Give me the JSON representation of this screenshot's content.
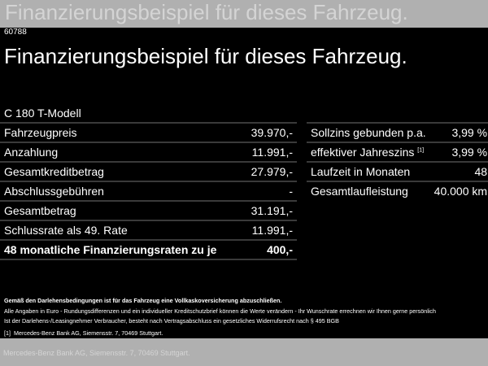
{
  "code": "60788",
  "title": "Finanzierungsbeispiel für dieses Fahrzeug.",
  "model": "C 180 T-Modell",
  "left_rows": [
    {
      "label": "Fahrzeugpreis",
      "value": "39.970,-"
    },
    {
      "label": "Anzahlung",
      "value": "11.991,-"
    },
    {
      "label": "Gesamtkreditbetrag",
      "value": "27.979,-"
    },
    {
      "label": "Abschlussgebühren",
      "value": "-"
    },
    {
      "label": "Gesamtbetrag",
      "value": "31.191,-"
    },
    {
      "label": "Schlussrate als 49. Rate",
      "value": "11.991,-"
    },
    {
      "label": "48 monatliche Finanzierungsraten zu je",
      "value": "400,-"
    }
  ],
  "right_rows": [
    {
      "label": "Sollzins gebunden p.a.",
      "value": "3,99 %"
    },
    {
      "label": "effektiver Jahreszins",
      "sup": "[1]",
      "value": "3,99 %"
    },
    {
      "label": "Laufzeit in Monaten",
      "value": "48"
    },
    {
      "label": "Gesamtlaufleistung",
      "value": "40.000 km"
    }
  ],
  "notes": {
    "insurance": "Gemäß den Darlehensbedingungen ist für das Fahrzeug eine Vollkaskoversicherung abzuschließen.",
    "euro": "Alle Angaben in Euro - Rundungsdifferenzen und ein individueller Kreditschutzbrief können die Werte verändern - Ihr Wunschrate errechnen wir Ihnen gerne persönlich",
    "revocation": "Ist der Darlehens-/Leasingnehmer Verbraucher, besteht nach Vertragsabschluss ein gesetzliches Widerrufsrecht nach § 495 BGB",
    "footnote_mark": "[1]",
    "footnote": "Mercedes-Benz Bank AG, Siemensstr. 7, 70469 Stuttgart."
  }
}
